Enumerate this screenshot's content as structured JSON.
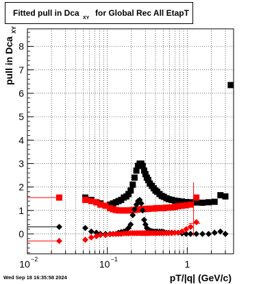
{
  "title": {
    "main": "Fitted pull in Dca",
    "subscript": "XY",
    "rest": "for Global Rec All EtapT"
  },
  "footer_timestamp": "Wed Sep 18 16:35:58 2024",
  "colors": {
    "black": "#000000",
    "red": "#ff0000",
    "grid": "#000000"
  },
  "chart_data": {
    "type": "scatter",
    "title": "Fitted pull in DcaXY for Global Rec All EtapT",
    "xlabel": "pT/|q| (GeV/c)",
    "ylabel": "pull in DcaXY",
    "ylabel_main": "pull in Dca",
    "ylabel_sub": "XY",
    "xscale": "log",
    "xlim": [
      0.01,
      3.8
    ],
    "ylim": [
      -0.85,
      8.75
    ],
    "grid": true,
    "xticks": [
      {
        "value": 0.01,
        "base": "10",
        "exp": "−2"
      },
      {
        "value": 0.1,
        "base": "10",
        "exp": "−1"
      },
      {
        "value": 1,
        "base": "1",
        "exp": ""
      }
    ],
    "yticks": [
      0,
      1,
      2,
      3,
      4,
      5,
      6,
      7,
      8
    ],
    "series": [
      {
        "marker": "square",
        "color": "#000000",
        "x": [
          0.025,
          0.053,
          0.063,
          0.073,
          0.082,
          0.095,
          0.108,
          0.118,
          0.128,
          0.138,
          0.149,
          0.161,
          0.173,
          0.184,
          0.196,
          0.208,
          0.219,
          0.231,
          0.242,
          0.254,
          0.266,
          0.277,
          0.289,
          0.3,
          0.312,
          0.325,
          0.34,
          0.36,
          0.38,
          0.4,
          0.42,
          0.45,
          0.48,
          0.51,
          0.55,
          0.59,
          0.64,
          0.7,
          0.77,
          0.86,
          0.97,
          1.1,
          1.3,
          1.55,
          1.85,
          2.2,
          2.6,
          3.0,
          3.5
        ],
        "y": [
          1.55,
          1.55,
          1.45,
          1.35,
          1.3,
          1.2,
          1.25,
          1.3,
          1.35,
          1.4,
          1.45,
          1.55,
          1.6,
          1.7,
          1.85,
          2.1,
          2.4,
          2.7,
          2.9,
          3.0,
          3.0,
          2.9,
          2.7,
          2.55,
          2.4,
          2.3,
          2.15,
          2.05,
          1.95,
          1.85,
          1.8,
          1.7,
          1.62,
          1.58,
          1.52,
          1.48,
          1.45,
          1.42,
          1.4,
          1.38,
          1.36,
          1.35,
          1.34,
          1.33,
          1.35,
          1.37,
          1.65,
          1.6,
          6.35
        ],
        "yerr": []
      },
      {
        "marker": "square",
        "color": "#ff0000",
        "x": [
          0.025,
          0.053,
          0.063,
          0.073,
          0.082,
          0.095,
          0.108,
          0.118,
          0.128,
          0.138,
          0.149,
          0.161,
          0.173,
          0.184,
          0.196,
          0.208,
          0.219,
          0.231,
          0.242,
          0.254,
          0.266,
          0.277,
          0.289,
          0.3,
          0.312,
          0.325,
          0.34,
          0.36,
          0.38,
          0.4,
          0.42,
          0.45,
          0.48,
          0.51,
          0.55,
          0.59,
          0.64,
          0.7,
          0.77,
          0.86,
          0.97,
          1.1,
          1.3
        ],
        "y": [
          1.55,
          1.45,
          1.4,
          1.35,
          1.25,
          1.2,
          1.1,
          1.05,
          1.02,
          1.0,
          1.0,
          1.0,
          1.0,
          1.0,
          1.0,
          1.02,
          1.02,
          1.03,
          1.05,
          1.05,
          1.05,
          1.06,
          1.06,
          1.06,
          1.07,
          1.07,
          1.08,
          1.08,
          1.08,
          1.09,
          1.1,
          1.1,
          1.1,
          1.1,
          1.12,
          1.12,
          1.13,
          1.15,
          1.18,
          1.2,
          1.22,
          1.25,
          1.55
        ],
        "yerr": []
      },
      {
        "marker": "diamond",
        "color": "#000000",
        "x": [
          0.025,
          0.053,
          0.063,
          0.073,
          0.082,
          0.095,
          0.108,
          0.118,
          0.128,
          0.138,
          0.149,
          0.161,
          0.173,
          0.184,
          0.196,
          0.208,
          0.219,
          0.231,
          0.242,
          0.254,
          0.266,
          0.277,
          0.289,
          0.3,
          0.312,
          0.325,
          0.34,
          0.36,
          0.38,
          0.4,
          0.42,
          0.45,
          0.48,
          0.51,
          0.55,
          0.59,
          0.64,
          0.7,
          0.77,
          0.86,
          0.97,
          1.1,
          1.3,
          1.55,
          1.85,
          2.2,
          2.6,
          3.0
        ],
        "y": [
          0.3,
          0.25,
          0.1,
          0.05,
          0.0,
          0.0,
          0.0,
          0.0,
          0.0,
          0.05,
          0.08,
          0.1,
          0.15,
          0.25,
          0.4,
          0.8,
          1.05,
          1.25,
          1.4,
          1.45,
          1.3,
          1.0,
          0.6,
          0.4,
          0.25,
          0.18,
          0.15,
          0.12,
          0.1,
          0.1,
          0.1,
          0.1,
          0.1,
          0.08,
          0.05,
          0.05,
          0.05,
          0.05,
          0.05,
          0.02,
          0.0,
          0.0,
          0.0,
          0.0,
          0.0,
          0.05,
          0.1,
          0.0
        ],
        "yerr": []
      },
      {
        "marker": "diamond",
        "color": "#ff0000",
        "x": [
          0.025,
          0.053,
          0.063,
          0.073,
          0.082,
          0.095,
          0.108,
          0.118,
          0.128,
          0.138,
          0.149,
          0.161,
          0.173,
          0.184,
          0.196,
          0.208,
          0.219,
          0.231,
          0.242,
          0.254,
          0.266,
          0.277,
          0.289,
          0.3,
          0.312,
          0.325,
          0.34,
          0.36,
          0.38,
          0.4,
          0.42,
          0.45,
          0.48,
          0.51,
          0.55,
          0.59,
          0.64,
          0.7,
          0.77,
          0.86,
          0.97,
          1.1,
          1.3
        ],
        "y": [
          -0.3,
          -0.25,
          -0.15,
          -0.1,
          -0.05,
          -0.05,
          -0.02,
          0.0,
          0.0,
          0.0,
          0.0,
          0.02,
          0.02,
          0.02,
          0.03,
          0.03,
          0.03,
          0.03,
          0.03,
          0.03,
          0.03,
          0.03,
          0.03,
          0.03,
          0.03,
          0.03,
          0.03,
          0.03,
          0.03,
          0.03,
          0.03,
          0.03,
          0.03,
          0.03,
          0.03,
          0.03,
          0.03,
          0.05,
          0.05,
          0.1,
          0.2,
          0.3,
          0.5
        ],
        "yerr": []
      }
    ]
  }
}
